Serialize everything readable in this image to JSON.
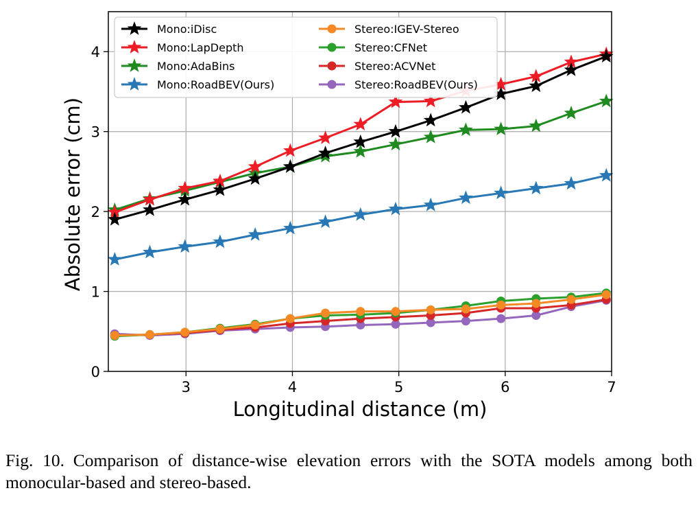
{
  "chart_data": {
    "type": "line",
    "title": "",
    "xlabel": "Longitudinal distance (m)",
    "ylabel": "Absolute error (cm)",
    "xlim": [
      2.27,
      7.0
    ],
    "ylim": [
      0,
      4.5
    ],
    "xticks": [
      3,
      4,
      5,
      6,
      7
    ],
    "yticks": [
      0,
      1,
      2,
      3,
      4
    ],
    "grid": true,
    "legend_position": "top-left",
    "x": [
      2.33,
      2.66,
      2.99,
      3.32,
      3.65,
      3.98,
      4.31,
      4.64,
      4.97,
      5.3,
      5.63,
      5.96,
      6.29,
      6.62,
      6.95
    ],
    "series": [
      {
        "name": "Mono:iDisc",
        "color": "#000000",
        "marker": "star",
        "values": [
          1.9,
          2.02,
          2.15,
          2.27,
          2.41,
          2.56,
          2.73,
          2.87,
          3.0,
          3.14,
          3.3,
          3.47,
          3.57,
          3.77,
          3.94
        ]
      },
      {
        "name": "Mono:LapDepth",
        "color": "#ee1c25",
        "marker": "star",
        "values": [
          1.99,
          2.15,
          2.29,
          2.38,
          2.56,
          2.76,
          2.92,
          3.09,
          3.37,
          3.38,
          3.51,
          3.59,
          3.69,
          3.87,
          3.97
        ]
      },
      {
        "name": "Mono:AdaBins",
        "color": "#1f8a1f",
        "marker": "star",
        "values": [
          2.02,
          2.16,
          2.26,
          2.37,
          2.48,
          2.56,
          2.69,
          2.75,
          2.84,
          2.93,
          3.02,
          3.03,
          3.07,
          3.23,
          3.38
        ]
      },
      {
        "name": "Mono:RoadBEV(Ours)",
        "color": "#2878b5",
        "marker": "star",
        "values": [
          1.4,
          1.49,
          1.56,
          1.62,
          1.71,
          1.79,
          1.87,
          1.96,
          2.03,
          2.08,
          2.17,
          2.23,
          2.29,
          2.35,
          2.45
        ]
      },
      {
        "name": "Stereo:IGEV-Stereo",
        "color": "#f58a25",
        "marker": "circle",
        "values": [
          0.45,
          0.46,
          0.49,
          0.53,
          0.58,
          0.66,
          0.73,
          0.75,
          0.75,
          0.77,
          0.78,
          0.83,
          0.85,
          0.9,
          0.96
        ]
      },
      {
        "name": "Stereo:CFNet",
        "color": "#2ca02c",
        "marker": "circle",
        "values": [
          0.44,
          0.46,
          0.49,
          0.54,
          0.59,
          0.66,
          0.7,
          0.71,
          0.73,
          0.77,
          0.82,
          0.88,
          0.91,
          0.93,
          0.98
        ]
      },
      {
        "name": "Stereo:ACVNet",
        "color": "#d62728",
        "marker": "circle",
        "values": [
          0.45,
          0.46,
          0.48,
          0.52,
          0.55,
          0.6,
          0.63,
          0.66,
          0.68,
          0.7,
          0.73,
          0.79,
          0.79,
          0.83,
          0.9
        ]
      },
      {
        "name": "Stereo:RoadBEV(Ours)",
        "color": "#9467bd",
        "marker": "circle",
        "values": [
          0.47,
          0.45,
          0.47,
          0.51,
          0.53,
          0.55,
          0.56,
          0.58,
          0.59,
          0.61,
          0.63,
          0.66,
          0.7,
          0.81,
          0.89
        ]
      }
    ]
  },
  "caption": "Fig. 10. Comparison of distance-wise elevation errors with the SOTA models among both monocular-based and stereo-based."
}
